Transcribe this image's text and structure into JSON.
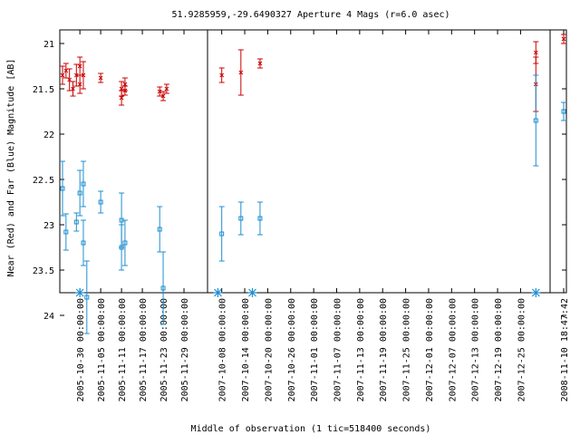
{
  "chart_data": {
    "type": "scatter",
    "title": "51.9285959,-29.6490327   Aperture 4 Mags (r=6.0 asec)",
    "xlabel": "Middle of observation (1 tic=518400 seconds)",
    "ylabel": "Near (Red) and Far (Blue) Magnitude [AB]",
    "ylim": [
      23.75,
      20.85
    ],
    "y_reversed": true,
    "y_ticks": [
      "21",
      "21.5",
      "22",
      "22.5",
      "23",
      "23.5",
      "24"
    ],
    "y_tick_values": [
      21,
      21.5,
      22,
      22.5,
      23,
      23.5,
      24
    ],
    "grid": false,
    "colors": {
      "near": "#cc0000",
      "far": "#1f8fd0"
    },
    "panels": [
      {
        "xlim": [
          "2005-10-25",
          "2005-12-05"
        ],
        "ticks": [
          "2005-10-30 00:00:00",
          "2005-11-05 00:00:00",
          "2005-11-11 00:00:00",
          "2005-11-17 00:00:00",
          "2005-11-23 00:00:00",
          "2005-11-29 00:00:00"
        ],
        "tick_x": [
          "2005-10-30",
          "2005-11-05",
          "2005-11-11",
          "2005-11-17",
          "2005-11-23",
          "2005-11-29"
        ],
        "markers": [
          "2005-10-30"
        ],
        "near": [
          {
            "x": "2005-10-25",
            "y": 21.35,
            "err": 0.1
          },
          {
            "x": "2005-10-26",
            "y": 21.3,
            "err": 0.08
          },
          {
            "x": "2005-10-27",
            "y": 21.4,
            "err": 0.12
          },
          {
            "x": "2005-10-28",
            "y": 21.5,
            "err": 0.08
          },
          {
            "x": "2005-10-29",
            "y": 21.35,
            "err": 0.12
          },
          {
            "x": "2005-10-30",
            "y": 21.25,
            "err": 0.1
          },
          {
            "x": "2005-10-30",
            "y": 21.45,
            "err": 0.1
          },
          {
            "x": "2005-10-31",
            "y": 21.35,
            "err": 0.15
          },
          {
            "x": "2005-11-05",
            "y": 21.38,
            "err": 0.05
          },
          {
            "x": "2005-11-11",
            "y": 21.6,
            "err": 0.08
          },
          {
            "x": "2005-11-11",
            "y": 21.5,
            "err": 0.08
          },
          {
            "x": "2005-11-12",
            "y": 21.45,
            "err": 0.07
          },
          {
            "x": "2005-11-12",
            "y": 21.52,
            "err": 0.05
          },
          {
            "x": "2005-11-22",
            "y": 21.53,
            "err": 0.05
          },
          {
            "x": "2005-11-23",
            "y": 21.58,
            "err": 0.05
          },
          {
            "x": "2005-11-24",
            "y": 21.5,
            "err": 0.05
          }
        ],
        "far": [
          {
            "x": "2005-10-25",
            "y": 22.6,
            "err": 0.3
          },
          {
            "x": "2005-10-26",
            "y": 23.08,
            "err": 0.2
          },
          {
            "x": "2005-10-29",
            "y": 22.97,
            "err": 0.1
          },
          {
            "x": "2005-10-30",
            "y": 22.65,
            "err": 0.25
          },
          {
            "x": "2005-10-31",
            "y": 23.2,
            "err": 0.25
          },
          {
            "x": "2005-10-31",
            "y": 22.55,
            "err": 0.25
          },
          {
            "x": "2005-11-01",
            "y": 23.8,
            "err": 0.4
          },
          {
            "x": "2005-11-05",
            "y": 22.75,
            "err": 0.12
          },
          {
            "x": "2005-11-11",
            "y": 23.25,
            "err": 0.25
          },
          {
            "x": "2005-11-11",
            "y": 22.95,
            "err": 0.3
          },
          {
            "x": "2005-11-12",
            "y": 23.2,
            "err": 0.25
          },
          {
            "x": "2005-11-22",
            "y": 23.05,
            "err": 0.25
          },
          {
            "x": "2005-11-23",
            "y": 23.7,
            "err": 0.4
          }
        ]
      },
      {
        "xlim": [
          "2007-10-05",
          "2008-01-01"
        ],
        "ticks": [
          "2007-10-08 00:00:00",
          "2007-10-14 00:00:00",
          "2007-10-20 00:00:00",
          "2007-10-26 00:00:00",
          "2007-11-01 00:00:00",
          "2007-11-07 00:00:00",
          "2007-11-13 00:00:00",
          "2007-11-19 00:00:00",
          "2007-11-25 00:00:00",
          "2007-12-01 00:00:00",
          "2007-12-07 00:00:00",
          "2007-12-13 00:00:00",
          "2007-12-19 00:00:00",
          "2007-12-25 00:00:00"
        ],
        "tick_x": [
          "2007-10-08",
          "2007-10-14",
          "2007-10-20",
          "2007-10-26",
          "2007-11-01",
          "2007-11-07",
          "2007-11-13",
          "2007-11-19",
          "2007-11-25",
          "2007-12-01",
          "2007-12-07",
          "2007-12-13",
          "2007-12-19",
          "2007-12-25"
        ],
        "markers": [
          "2007-10-07",
          "2007-10-16",
          "2007-12-29"
        ],
        "near": [
          {
            "x": "2007-10-08",
            "y": 21.35,
            "err": 0.08
          },
          {
            "x": "2007-10-13",
            "y": 21.32,
            "err": 0.25
          },
          {
            "x": "2007-10-18",
            "y": 21.22,
            "err": 0.05
          },
          {
            "x": "2007-12-29",
            "y": 21.1,
            "err": 0.12
          },
          {
            "x": "2007-12-29",
            "y": 21.45,
            "err": 0.3
          }
        ],
        "far": [
          {
            "x": "2007-10-08",
            "y": 23.1,
            "err": 0.3
          },
          {
            "x": "2007-10-13",
            "y": 22.93,
            "err": 0.18
          },
          {
            "x": "2007-10-18",
            "y": 22.93,
            "err": 0.18
          },
          {
            "x": "2007-12-29",
            "y": 21.85,
            "err": 0.5
          }
        ]
      },
      {
        "xlim": [
          "2008-11-09",
          "2008-11-10"
        ],
        "ticks": [
          "2008-11-10 18:47:42"
        ],
        "tick_x": [
          "2008-11-10"
        ],
        "markers": [],
        "near": [
          {
            "x": "2008-11-10",
            "y": 20.95,
            "err": 0.05
          }
        ],
        "far": [
          {
            "x": "2008-11-10",
            "y": 21.75,
            "err": 0.1
          }
        ]
      }
    ]
  }
}
